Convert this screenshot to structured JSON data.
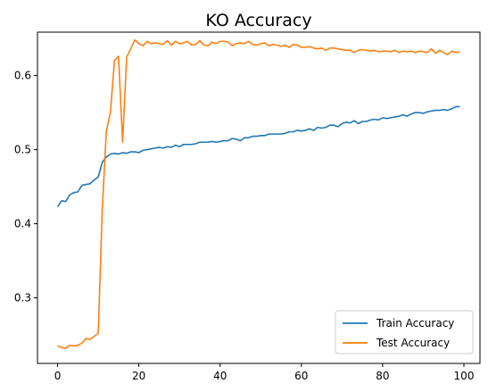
{
  "chart_data": {
    "type": "line",
    "title": "KO Accuracy",
    "xlabel": "",
    "ylabel": "",
    "xlim": [
      -4.95,
      103.95
    ],
    "ylim": [
      0.2115,
      0.6585
    ],
    "xticks": [
      0,
      20,
      40,
      60,
      80,
      100
    ],
    "yticks": [
      0.3,
      0.4,
      0.5,
      0.6
    ],
    "ytick_labels": [
      "0.3",
      "0.4",
      "0.5",
      "0.6"
    ],
    "grid": false,
    "legend_position": "lower-right",
    "x": [
      0,
      1,
      2,
      3,
      4,
      5,
      6,
      7,
      8,
      9,
      10,
      11,
      12,
      13,
      14,
      15,
      16,
      17,
      18,
      19,
      20,
      21,
      22,
      23,
      24,
      25,
      26,
      27,
      28,
      29,
      30,
      31,
      32,
      33,
      34,
      35,
      36,
      37,
      38,
      39,
      40,
      41,
      42,
      43,
      44,
      45,
      46,
      47,
      48,
      49,
      50,
      51,
      52,
      53,
      54,
      55,
      56,
      57,
      58,
      59,
      60,
      61,
      62,
      63,
      64,
      65,
      66,
      67,
      68,
      69,
      70,
      71,
      72,
      73,
      74,
      75,
      76,
      77,
      78,
      79,
      80,
      81,
      82,
      83,
      84,
      85,
      86,
      87,
      88,
      89,
      90,
      91,
      92,
      93,
      94,
      95,
      96,
      97,
      98,
      99
    ],
    "series": [
      {
        "name": "Train Accuracy",
        "color": "#1f77b4",
        "values": [
          0.423,
          0.431,
          0.43,
          0.439,
          0.442,
          0.443,
          0.452,
          0.453,
          0.454,
          0.459,
          0.463,
          0.483,
          0.49,
          0.494,
          0.495,
          0.494,
          0.496,
          0.495,
          0.497,
          0.497,
          0.496,
          0.499,
          0.5,
          0.501,
          0.502,
          0.503,
          0.502,
          0.504,
          0.503,
          0.506,
          0.504,
          0.507,
          0.507,
          0.507,
          0.508,
          0.51,
          0.51,
          0.51,
          0.511,
          0.51,
          0.511,
          0.512,
          0.512,
          0.515,
          0.514,
          0.512,
          0.516,
          0.516,
          0.518,
          0.518,
          0.519,
          0.519,
          0.521,
          0.521,
          0.521,
          0.521,
          0.522,
          0.524,
          0.524,
          0.526,
          0.525,
          0.526,
          0.528,
          0.526,
          0.53,
          0.529,
          0.53,
          0.533,
          0.533,
          0.531,
          0.535,
          0.537,
          0.536,
          0.539,
          0.535,
          0.538,
          0.538,
          0.54,
          0.541,
          0.54,
          0.543,
          0.542,
          0.543,
          0.544,
          0.545,
          0.547,
          0.545,
          0.548,
          0.55,
          0.55,
          0.549,
          0.551,
          0.552,
          0.553,
          0.553,
          0.554,
          0.553,
          0.555,
          0.558,
          0.558
        ]
      },
      {
        "name": "Test Accuracy",
        "color": "#ff7f0e",
        "values": [
          0.235,
          0.233,
          0.232,
          0.236,
          0.235,
          0.236,
          0.239,
          0.245,
          0.244,
          0.248,
          0.252,
          0.42,
          0.525,
          0.55,
          0.62,
          0.626,
          0.51,
          0.625,
          0.636,
          0.648,
          0.643,
          0.64,
          0.646,
          0.643,
          0.644,
          0.643,
          0.642,
          0.647,
          0.641,
          0.646,
          0.643,
          0.644,
          0.646,
          0.641,
          0.642,
          0.647,
          0.641,
          0.64,
          0.645,
          0.643,
          0.646,
          0.646,
          0.645,
          0.64,
          0.643,
          0.644,
          0.643,
          0.646,
          0.642,
          0.641,
          0.643,
          0.644,
          0.64,
          0.642,
          0.641,
          0.639,
          0.641,
          0.638,
          0.642,
          0.641,
          0.638,
          0.638,
          0.639,
          0.637,
          0.636,
          0.637,
          0.634,
          0.637,
          0.637,
          0.636,
          0.635,
          0.634,
          0.634,
          0.631,
          0.634,
          0.635,
          0.634,
          0.633,
          0.634,
          0.632,
          0.633,
          0.633,
          0.632,
          0.634,
          0.631,
          0.633,
          0.632,
          0.633,
          0.631,
          0.633,
          0.632,
          0.631,
          0.636,
          0.63,
          0.634,
          0.631,
          0.628,
          0.633,
          0.631,
          0.632
        ]
      }
    ]
  }
}
